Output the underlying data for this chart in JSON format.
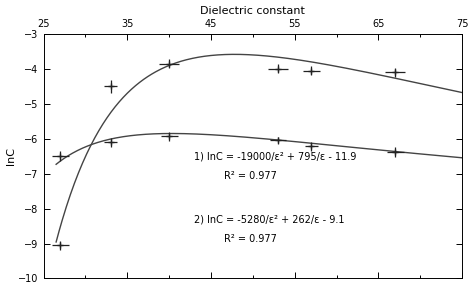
{
  "series1_x": [
    27,
    33,
    40,
    53,
    57,
    67
  ],
  "series1_y": [
    -6.5,
    -4.5,
    -3.85,
    -4.0,
    -4.05,
    -4.1
  ],
  "series1_xerr": [
    1.0,
    0.8,
    1.2,
    1.2,
    1.0,
    1.2
  ],
  "series1_yerr": [
    0.15,
    0.18,
    0.13,
    0.13,
    0.13,
    0.13
  ],
  "series2_x": [
    27,
    33,
    40,
    53,
    57,
    67
  ],
  "series2_y": [
    -9.05,
    -6.1,
    -5.93,
    -6.05,
    -6.22,
    -6.38
  ],
  "series2_xerr": [
    1.0,
    0.8,
    1.0,
    1.0,
    0.8,
    1.0
  ],
  "series2_yerr": [
    0.13,
    0.13,
    0.13,
    0.1,
    0.13,
    0.13
  ],
  "eq1_text": "1) lnC = -19000/ε² + 795/ε - 11.9",
  "eq1_r2": "R² = 0.977",
  "eq2_text": "2) lnC = -5280/ε² + 262/ε - 9.1",
  "eq2_r2": "R² = 0.977",
  "xlabel_top": "Dielectric constant",
  "ylabel": "lnC",
  "xlim": [
    25,
    75
  ],
  "ylim": [
    -10,
    -3
  ],
  "xticks": [
    25,
    35,
    45,
    55,
    65,
    75
  ],
  "yticks": [
    -10,
    -9,
    -8,
    -7,
    -6,
    -5,
    -4,
    -3
  ],
  "curve_color": "#444444",
  "point_color": "#222222",
  "background_color": "#ffffff"
}
